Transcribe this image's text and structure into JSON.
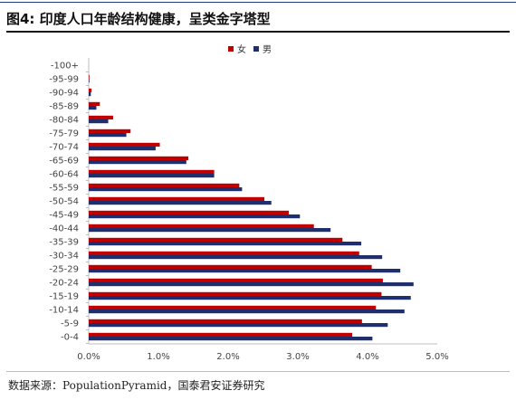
{
  "header": {
    "title": "图4: 印度人口年龄结构健康，呈类金字塔型"
  },
  "footer": {
    "source": "数据来源：PopulationPyramid，国泰君安证券研究"
  },
  "colors": {
    "female": "#c00000",
    "male": "#1f2f6e",
    "axis": "#bfbfbf",
    "text": "#444444"
  },
  "chart_data": {
    "type": "bar",
    "orientation": "horizontal",
    "categories": [
      "0-4",
      "5-9",
      "10-14",
      "15-19",
      "20-24",
      "25-29",
      "30-34",
      "35-39",
      "40-44",
      "45-49",
      "50-54",
      "55-59",
      "60-64",
      "65-69",
      "70-74",
      "75-79",
      "80-84",
      "85-89",
      "90-94",
      "95-99",
      "100+"
    ],
    "category_display": [
      "-0-4",
      "-5-9",
      "-10-14",
      "-15-19",
      "-20-24",
      "-25-29",
      "-30-34",
      "-35-39",
      "-40-44",
      "-45-49",
      "-50-54",
      "-55-59",
      "-60-64",
      "-65-69",
      "-70-74",
      "-75-79",
      "-80-84",
      "-85-89",
      "-90-94",
      "-95-99",
      "-100+"
    ],
    "series": [
      {
        "name": "女",
        "values": [
          3.78,
          3.92,
          4.12,
          4.2,
          4.22,
          4.06,
          3.88,
          3.64,
          3.23,
          2.87,
          2.52,
          2.16,
          1.8,
          1.43,
          1.02,
          0.6,
          0.35,
          0.16,
          0.04,
          0.01,
          0.0
        ]
      },
      {
        "name": "男",
        "values": [
          4.07,
          4.29,
          4.53,
          4.62,
          4.66,
          4.47,
          4.21,
          3.91,
          3.47,
          3.03,
          2.62,
          2.2,
          1.8,
          1.4,
          0.96,
          0.54,
          0.28,
          0.11,
          0.03,
          0.01,
          0.0
        ]
      }
    ],
    "xlim": [
      0,
      5
    ],
    "xticks": [
      "0.0%",
      "1.0%",
      "2.0%",
      "3.0%",
      "4.0%",
      "5.0%"
    ],
    "legend": "top-center",
    "grid": false
  }
}
